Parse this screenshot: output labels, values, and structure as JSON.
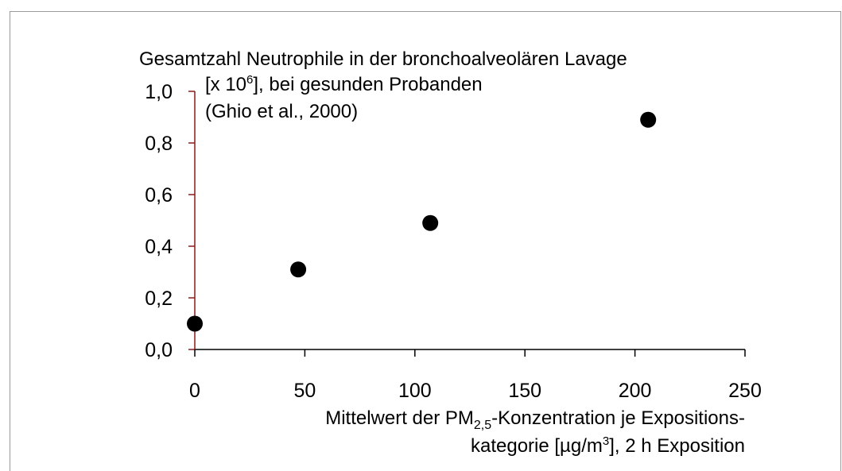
{
  "chart_data": {
    "type": "scatter",
    "ylabel": {
      "line1": "Gesamtzahl Neutrophile in der bronchoalveolären Lavage",
      "line2_pre": "[x 10",
      "line2_sup": "6",
      "line2_post": "], bei gesunden Probanden",
      "line3": "(Ghio et al., 2000)"
    },
    "xlabel": {
      "line1_pre": "Mittelwert der PM",
      "line1_sub": "2,5",
      "line1_post": "-Konzentration je Expositions-",
      "line2_pre": "kategorie [µg/m",
      "line2_sup": "3",
      "line2_post": "], 2 h Exposition"
    },
    "x": [
      0,
      47,
      107,
      206
    ],
    "series": [
      {
        "color": "#000000",
        "values": [
          0.1,
          0.31,
          0.49,
          0.89
        ]
      }
    ],
    "xlim": [
      0,
      250
    ],
    "xticks": [
      0,
      50,
      100,
      150,
      200,
      250
    ],
    "ylim": [
      0,
      1.0
    ],
    "yticks": [
      {
        "value": 0,
        "label": "0,0"
      },
      {
        "value": 0.2,
        "label": "0,2"
      },
      {
        "value": 0.4,
        "label": "0,4"
      },
      {
        "value": 0.6,
        "label": "0,6"
      },
      {
        "value": 0.8,
        "label": "0,8"
      },
      {
        "value": 1.0,
        "label": "1,0"
      }
    ],
    "y_axis_color": "#8b1a1a",
    "grid": false
  }
}
